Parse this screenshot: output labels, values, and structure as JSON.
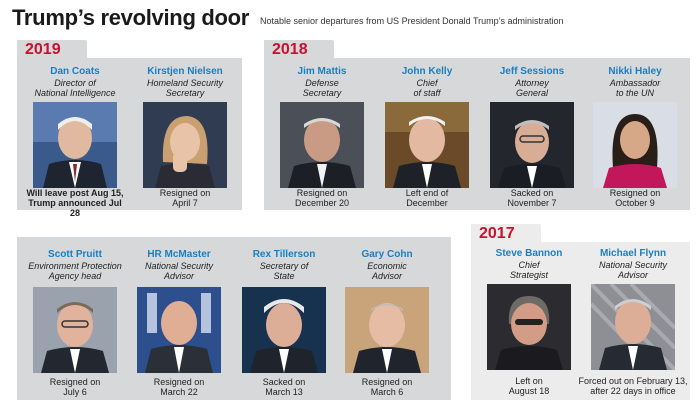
{
  "header": {
    "title": "Trump’s revolving door",
    "subtitle": "Notable senior departures from US President Donald Trump’s administration"
  },
  "groups": {
    "y2019": {
      "year": "2019",
      "people": [
        {
          "name": "Dan Coats",
          "role1": "Director of",
          "role2": "National Intelligence",
          "status1": "Will leave post Aug 15,",
          "status2": "Trump announced Jul 28"
        },
        {
          "name": "Kirstjen Nielsen",
          "role1": "Homeland Security",
          "role2": "Secretary",
          "status1": "Resigned on",
          "status2": "April 7"
        }
      ]
    },
    "y2018a": {
      "year": "2018",
      "people": [
        {
          "name": "Jim Mattis",
          "role1": "Defense",
          "role2": "Secretary",
          "status1": "Resigned on",
          "status2": "December 20"
        },
        {
          "name": "John Kelly",
          "role1": "Chief",
          "role2": "of staff",
          "status1": "Left end of",
          "status2": "December"
        },
        {
          "name": "Jeff Sessions",
          "role1": "Attorney",
          "role2": "General",
          "status1": "Sacked on",
          "status2": "November 7"
        },
        {
          "name": "Nikki Haley",
          "role1": "Ambassador",
          "role2": "to the UN",
          "status1": "Resigned on",
          "status2": "October 9"
        }
      ]
    },
    "y2018b": {
      "people": [
        {
          "name": "Scott Pruitt",
          "role1": "Environment Protection",
          "role2": "Agency head",
          "status1": "Resigned on",
          "status2": "July 6"
        },
        {
          "name": "HR McMaster",
          "role1": "National Security",
          "role2": "Advisor",
          "status1": "Resigned on",
          "status2": "March 22"
        },
        {
          "name": "Rex Tillerson",
          "role1": "Secretary of",
          "role2": "State",
          "status1": "Sacked on",
          "status2": "March 13"
        },
        {
          "name": "Gary Cohn",
          "role1": "Economic",
          "role2": "Advisor",
          "status1": "Resigned on",
          "status2": "March 6"
        }
      ]
    },
    "y2017": {
      "year": "2017",
      "people": [
        {
          "name": "Steve Bannon",
          "role1": "Chief",
          "role2": "Strategist",
          "status1": "Left on",
          "status2": "August 18"
        },
        {
          "name": "Michael Flynn",
          "role1": "National Security",
          "role2": "Advisor",
          "status1": "Forced out on February 13,",
          "status2": "after 22 days in office"
        }
      ]
    }
  },
  "colors": {
    "year_red": "#c4122f",
    "name_blue": "#1a7ec2",
    "panel_gray": "#d7d8da",
    "panel_light": "#ececec"
  }
}
